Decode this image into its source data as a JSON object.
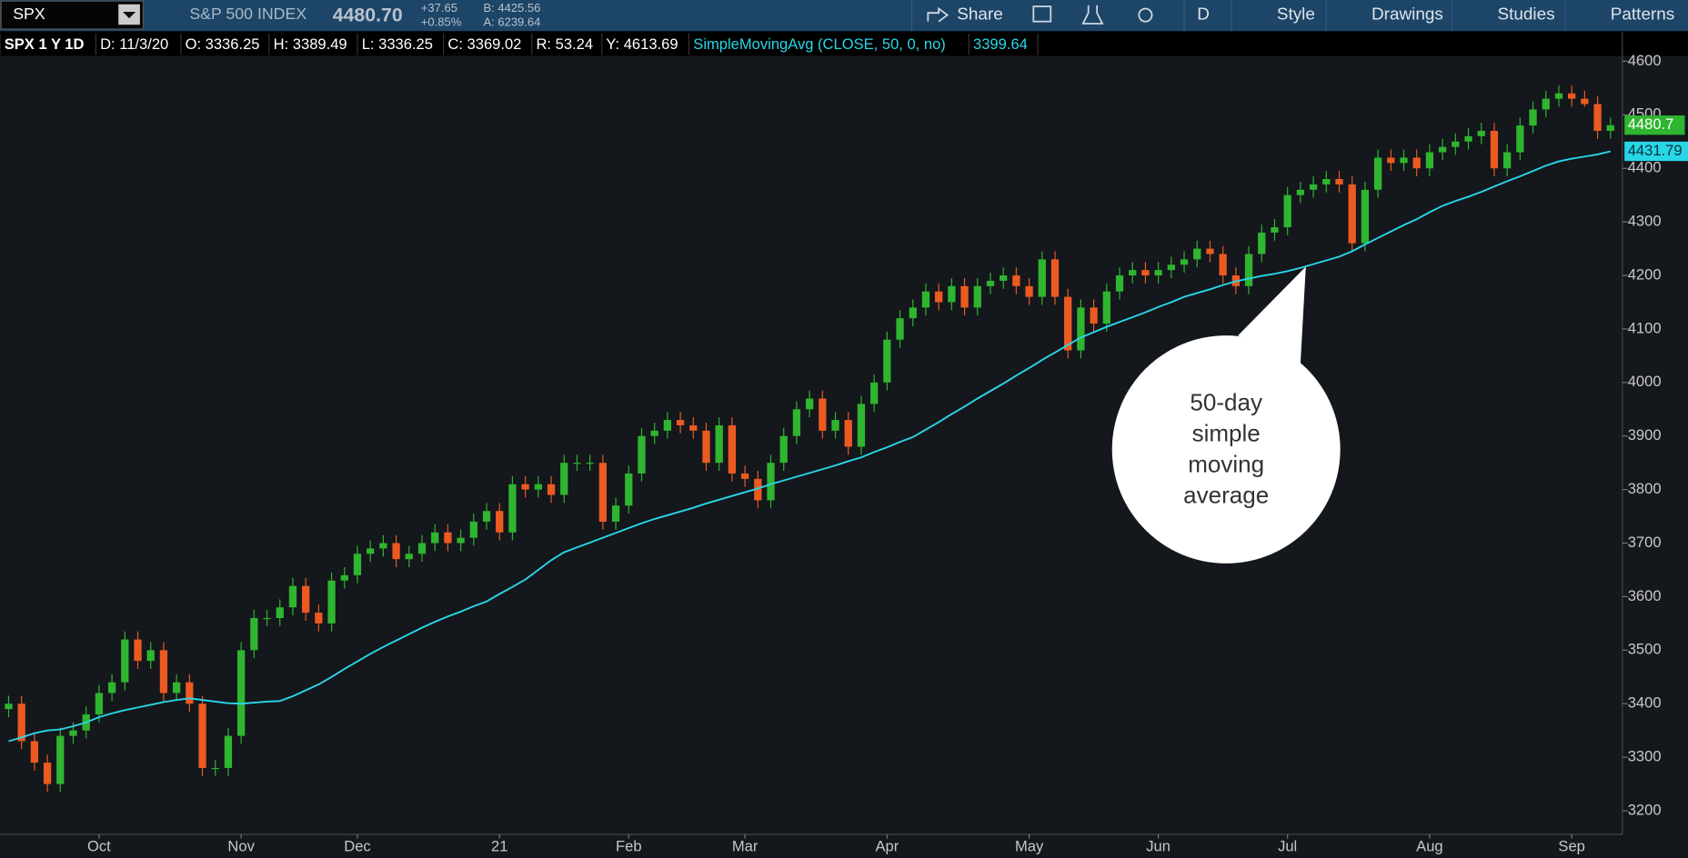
{
  "toolbar": {
    "symbol": "SPX",
    "name": "S&P 500 INDEX",
    "last": "4480.70",
    "change": "+37.65",
    "change_pct": "+0.85%",
    "bid": "B: 4425.56",
    "ask": "A: 6239.64",
    "buttons": [
      "Share",
      "D",
      "Style",
      "Drawings",
      "Studies",
      "Patterns"
    ]
  },
  "info_bar": {
    "items": [
      "SPX 1 Y 1D",
      "D: 11/3/20",
      "O: 3336.25",
      "H: 3389.49",
      "L: 3336.25",
      "C: 3369.02",
      "R: 53.24",
      "Y: 4613.69"
    ],
    "study": "SimpleMovingAvg (CLOSE, 50, 0, no)",
    "study_value": "3399.64"
  },
  "chart_data": {
    "type": "candlestick",
    "categories": [
      null,
      null,
      null,
      null,
      null,
      null,
      null,
      "Oct",
      null,
      null,
      null,
      null,
      null,
      null,
      null,
      null,
      null,
      null,
      "Nov",
      null,
      null,
      null,
      null,
      null,
      null,
      null,
      null,
      "Dec",
      null,
      null,
      null,
      null,
      null,
      null,
      null,
      null,
      null,
      null,
      "21",
      null,
      null,
      null,
      null,
      null,
      null,
      null,
      null,
      null,
      "Feb",
      null,
      null,
      null,
      null,
      null,
      null,
      null,
      null,
      "Mar",
      null,
      null,
      null,
      null,
      null,
      null,
      null,
      null,
      null,
      null,
      "Apr",
      null,
      null,
      null,
      null,
      null,
      null,
      null,
      null,
      null,
      null,
      "May",
      null,
      null,
      null,
      null,
      null,
      null,
      null,
      null,
      null,
      "Jun",
      null,
      null,
      null,
      null,
      null,
      null,
      null,
      null,
      null,
      "Jul",
      null,
      null,
      null,
      null,
      null,
      null,
      null,
      null,
      null,
      null,
      "Aug",
      null,
      null,
      null,
      null,
      null,
      null,
      null,
      null,
      null,
      null,
      "Sep",
      null,
      null,
      null
    ],
    "open": [
      3390,
      3400,
      3330,
      3290,
      3250,
      3340,
      3350,
      3380,
      3420,
      3440,
      3520,
      3480,
      3500,
      3420,
      3440,
      3400,
      3280,
      3280,
      3340,
      3500,
      3560,
      3560,
      3580,
      3620,
      3570,
      3550,
      3630,
      3640,
      3680,
      3690,
      3700,
      3670,
      3680,
      3700,
      3720,
      3700,
      3710,
      3740,
      3760,
      3720,
      3810,
      3800,
      3810,
      3790,
      3850,
      3850,
      3850,
      3740,
      3770,
      3830,
      3900,
      3910,
      3930,
      3920,
      3910,
      3850,
      3920,
      3830,
      3820,
      3780,
      3850,
      3900,
      3950,
      3970,
      3910,
      3930,
      3880,
      3960,
      4000,
      4080,
      4120,
      4140,
      4170,
      4150,
      4180,
      4140,
      4180,
      4190,
      4200,
      4180,
      4160,
      4230,
      4160,
      4060,
      4140,
      4110,
      4170,
      4200,
      4210,
      4200,
      4210,
      4220,
      4230,
      4250,
      4240,
      4200,
      4180,
      4240,
      4280,
      4290,
      4350,
      4360,
      4370,
      4380,
      4370,
      4260,
      4360,
      4420,
      4410,
      4420,
      4400,
      4430,
      4440,
      4450,
      4460,
      4470,
      4400,
      4430,
      4480,
      4510,
      4530,
      4540,
      4530,
      4520,
      4470
    ],
    "high": [
      3415,
      3415,
      3345,
      3305,
      3355,
      3365,
      3395,
      3435,
      3455,
      3535,
      3535,
      3515,
      3515,
      3455,
      3455,
      3415,
      3295,
      3355,
      3515,
      3575,
      3575,
      3595,
      3635,
      3635,
      3585,
      3645,
      3655,
      3695,
      3705,
      3715,
      3715,
      3695,
      3715,
      3735,
      3735,
      3725,
      3755,
      3775,
      3775,
      3825,
      3825,
      3825,
      3825,
      3865,
      3865,
      3865,
      3865,
      3785,
      3845,
      3915,
      3925,
      3945,
      3945,
      3935,
      3925,
      3935,
      3935,
      3845,
      3835,
      3865,
      3915,
      3965,
      3985,
      3985,
      3945,
      3945,
      3975,
      4015,
      4095,
      4135,
      4155,
      4185,
      4185,
      4195,
      4195,
      4195,
      4205,
      4215,
      4215,
      4195,
      4245,
      4245,
      4175,
      4155,
      4155,
      4185,
      4215,
      4225,
      4225,
      4225,
      4235,
      4245,
      4265,
      4265,
      4255,
      4215,
      4255,
      4295,
      4305,
      4365,
      4375,
      4385,
      4395,
      4395,
      4385,
      4375,
      4435,
      4435,
      4435,
      4435,
      4445,
      4455,
      4465,
      4475,
      4485,
      4485,
      4445,
      4495,
      4525,
      4545,
      4555,
      4555,
      4545,
      4535,
      4495
    ],
    "low": [
      3375,
      3315,
      3275,
      3235,
      3235,
      3325,
      3335,
      3365,
      3405,
      3425,
      3465,
      3465,
      3405,
      3405,
      3385,
      3265,
      3265,
      3265,
      3325,
      3485,
      3545,
      3545,
      3565,
      3555,
      3535,
      3535,
      3615,
      3625,
      3665,
      3675,
      3655,
      3655,
      3665,
      3685,
      3685,
      3685,
      3695,
      3725,
      3705,
      3705,
      3785,
      3785,
      3775,
      3775,
      3835,
      3835,
      3725,
      3725,
      3755,
      3815,
      3885,
      3895,
      3905,
      3895,
      3835,
      3835,
      3815,
      3805,
      3765,
      3765,
      3835,
      3885,
      3935,
      3895,
      3895,
      3865,
      3865,
      3945,
      3985,
      4065,
      4105,
      4125,
      4135,
      4135,
      4125,
      4125,
      4165,
      4175,
      4165,
      4145,
      4145,
      4145,
      4045,
      4045,
      4095,
      4095,
      4155,
      4185,
      4185,
      4185,
      4195,
      4205,
      4215,
      4225,
      4185,
      4165,
      4165,
      4225,
      4265,
      4275,
      4335,
      4345,
      4355,
      4355,
      4245,
      4245,
      4345,
      4395,
      4395,
      4385,
      4385,
      4415,
      4425,
      4435,
      4445,
      4385,
      4385,
      4415,
      4465,
      4495,
      4515,
      4515,
      4515,
      4455,
      4455
    ],
    "close": [
      3400,
      3330,
      3290,
      3250,
      3340,
      3350,
      3380,
      3420,
      3440,
      3520,
      3480,
      3500,
      3420,
      3440,
      3400,
      3280,
      3280,
      3340,
      3500,
      3560,
      3560,
      3580,
      3620,
      3570,
      3550,
      3630,
      3640,
      3680,
      3690,
      3700,
      3670,
      3680,
      3700,
      3720,
      3700,
      3710,
      3740,
      3760,
      3720,
      3810,
      3800,
      3810,
      3790,
      3850,
      3850,
      3850,
      3740,
      3770,
      3830,
      3900,
      3910,
      3930,
      3920,
      3910,
      3850,
      3920,
      3830,
      3820,
      3780,
      3850,
      3900,
      3950,
      3970,
      3910,
      3930,
      3880,
      3960,
      4000,
      4080,
      4120,
      4140,
      4170,
      4150,
      4180,
      4140,
      4180,
      4190,
      4200,
      4180,
      4160,
      4230,
      4160,
      4060,
      4140,
      4110,
      4170,
      4200,
      4210,
      4200,
      4210,
      4220,
      4230,
      4250,
      4240,
      4200,
      4180,
      4240,
      4280,
      4290,
      4350,
      4360,
      4370,
      4380,
      4370,
      4260,
      4360,
      4420,
      4410,
      4420,
      4400,
      4430,
      4440,
      4450,
      4460,
      4470,
      4400,
      4430,
      4480,
      4510,
      4530,
      4540,
      4530,
      4520,
      4470,
      4480.7
    ],
    "close_label": "4480.7",
    "up_color": "#2fb52f",
    "down_color": "#ec5a22",
    "sma": {
      "name": "SimpleMovingAvg",
      "color": "#29d6e8",
      "values_label": "4431.79",
      "values": [
        3330,
        3337,
        3345,
        3350,
        3352,
        3358,
        3365,
        3375,
        3382,
        3388,
        3393,
        3398,
        3403,
        3407,
        3410,
        3407,
        3404,
        3401,
        3400,
        3402,
        3404,
        3405,
        3414,
        3425,
        3436,
        3450,
        3465,
        3479,
        3493,
        3506,
        3518,
        3530,
        3542,
        3553,
        3563,
        3572,
        3582,
        3591,
        3605,
        3618,
        3632,
        3650,
        3668,
        3683,
        3692,
        3701,
        3710,
        3719,
        3728,
        3737,
        3745,
        3752,
        3759,
        3766,
        3774,
        3781,
        3788,
        3795,
        3802,
        3810,
        3817,
        3824,
        3831,
        3838,
        3845,
        3853,
        3860,
        3870,
        3879,
        3889,
        3898,
        3912,
        3926,
        3941,
        3955,
        3970,
        3984,
        3998,
        4013,
        4027,
        4042,
        4056,
        4070,
        4084,
        4094,
        4104,
        4113,
        4122,
        4131,
        4141,
        4150,
        4160,
        4167,
        4174,
        4182,
        4189,
        4194,
        4199,
        4203,
        4208,
        4214,
        4221,
        4228,
        4235,
        4245,
        4258,
        4270,
        4282,
        4294,
        4305,
        4318,
        4330,
        4339,
        4347,
        4356,
        4366,
        4376,
        4385,
        4395,
        4405,
        4413,
        4418,
        4422,
        4426,
        4431.79
      ]
    },
    "ylim": [
      3156,
      4610
    ],
    "yticks": [
      3200,
      3300,
      3400,
      3500,
      3600,
      3700,
      3800,
      3900,
      4000,
      4100,
      4200,
      4300,
      4400,
      4500,
      4600
    ],
    "grid": false
  },
  "annotation": {
    "lines": [
      "50-day",
      "simple",
      "moving",
      "average"
    ]
  }
}
